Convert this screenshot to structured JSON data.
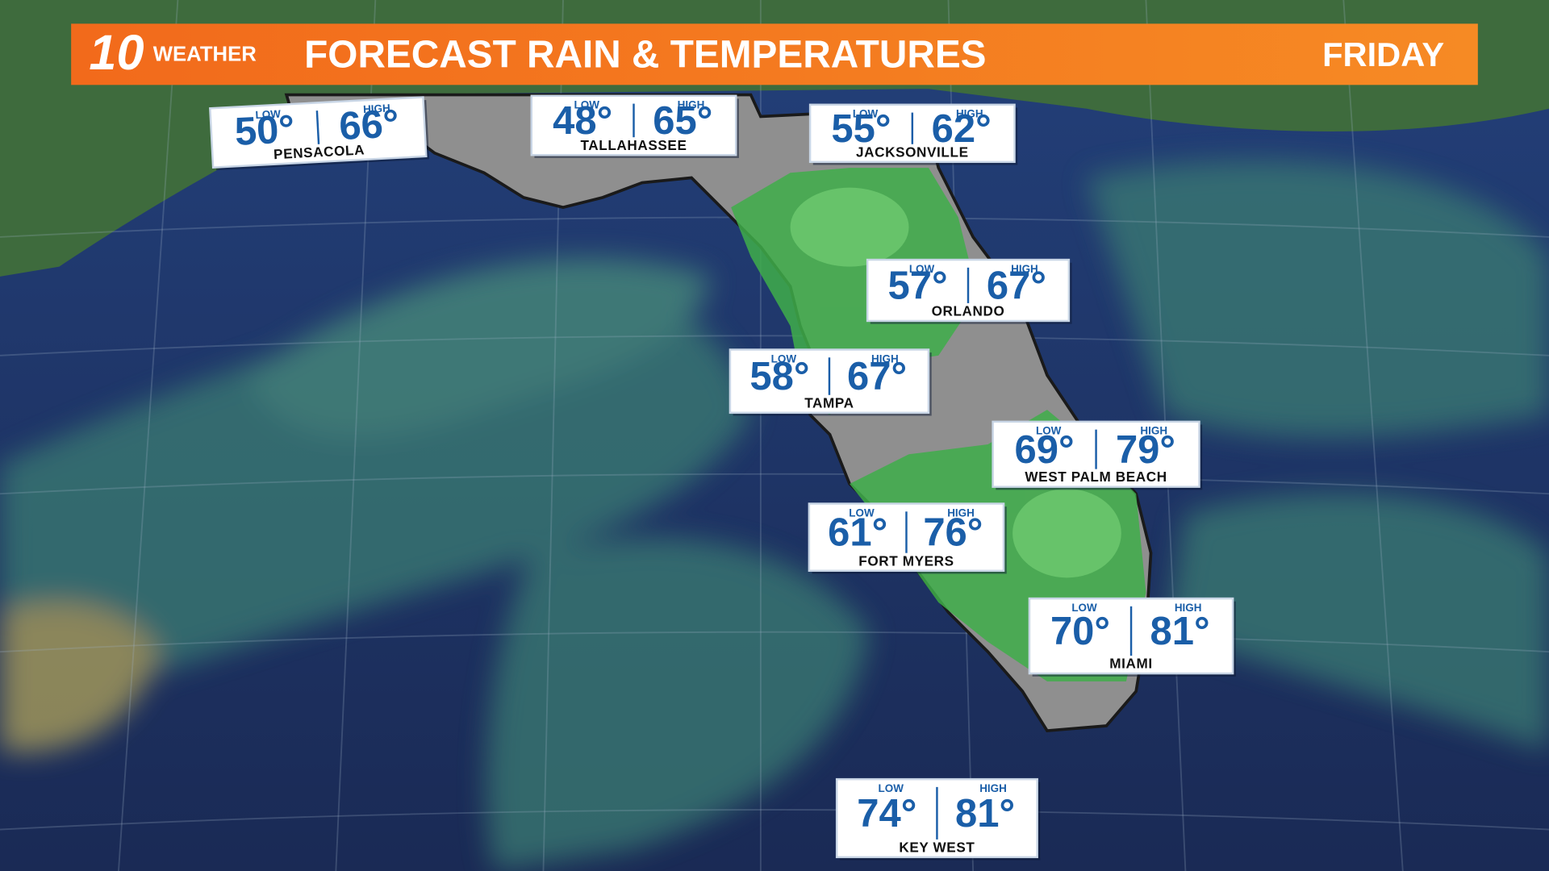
{
  "header": {
    "logo_number": "10",
    "logo_text": "WEATHER",
    "title": "FORECAST RAIN & TEMPERATURES",
    "day": "FRIDAY"
  },
  "temp_labels": {
    "low": "LOW",
    "high": "HIGH"
  },
  "cities": [
    {
      "name": "PENSACOLA",
      "low": "50°",
      "high": "66°"
    },
    {
      "name": "TALLAHASSEE",
      "low": "48°",
      "high": "65°"
    },
    {
      "name": "JACKSONVILLE",
      "low": "55°",
      "high": "62°"
    },
    {
      "name": "ORLANDO",
      "low": "57°",
      "high": "67°"
    },
    {
      "name": "TAMPA",
      "low": "58°",
      "high": "67°"
    },
    {
      "name": "WEST PALM BEACH",
      "low": "69°",
      "high": "79°"
    },
    {
      "name": "FORT MYERS",
      "low": "61°",
      "high": "76°"
    },
    {
      "name": "MIAMI",
      "low": "70°",
      "high": "81°"
    },
    {
      "name": "KEY WEST",
      "low": "74°",
      "high": "81°"
    }
  ]
}
